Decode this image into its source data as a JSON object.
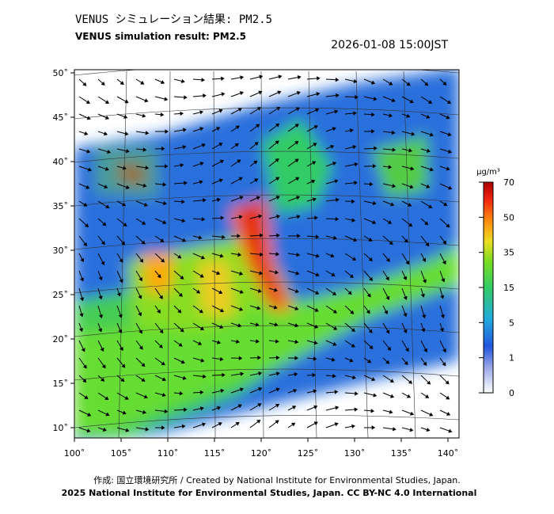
{
  "header": {
    "title_ja": "VENUS シミュレーション結果: PM2.5",
    "title_en": "VENUS simulation result: PM2.5",
    "timestamp": "2026-01-08 15:00JST"
  },
  "map": {
    "lat_labels": [
      "50˚",
      "45˚",
      "40˚",
      "35˚",
      "30˚",
      "25˚",
      "20˚",
      "15˚",
      "10˚"
    ],
    "lon_labels": [
      "100˚",
      "105˚",
      "110˚",
      "115˚",
      "120˚",
      "125˚",
      "130˚",
      "135˚",
      "140˚"
    ]
  },
  "colorbar": {
    "unit": "µg/m³",
    "ticks": [
      70,
      50,
      35,
      15,
      5,
      1,
      0
    ]
  },
  "footer": {
    "line1": "作成: 国立環境研究所 / Created by National Institute for Environmental Studies, Japan.",
    "line2": "2025 National Institute for Environmental Studies, Japan. CC BY-NC 4.0 International"
  }
}
